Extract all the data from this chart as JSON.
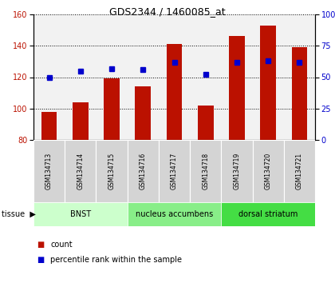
{
  "title": "GDS2344 / 1460085_at",
  "samples": [
    "GSM134713",
    "GSM134714",
    "GSM134715",
    "GSM134716",
    "GSM134717",
    "GSM134718",
    "GSM134719",
    "GSM134720",
    "GSM134721"
  ],
  "counts": [
    98,
    104,
    119,
    114,
    141,
    102,
    146,
    153,
    139
  ],
  "percentile": [
    50,
    55,
    57,
    56,
    62,
    52,
    62,
    63,
    62
  ],
  "ylim_left": [
    80,
    160
  ],
  "ylim_right": [
    0,
    100
  ],
  "yticks_left": [
    80,
    100,
    120,
    140,
    160
  ],
  "yticks_right": [
    0,
    25,
    50,
    75,
    100
  ],
  "bar_color": "#bb1100",
  "dot_color": "#0000cc",
  "bg_color": "#ffffff",
  "plot_bg": "#f2f2f2",
  "label_bg": "#d0d0d0",
  "tissue_groups": [
    {
      "label": "BNST",
      "start": 0,
      "end": 3,
      "color": "#ccffcc"
    },
    {
      "label": "nucleus accumbens",
      "start": 3,
      "end": 6,
      "color": "#88ee88"
    },
    {
      "label": "dorsal striatum",
      "start": 6,
      "end": 9,
      "color": "#44dd44"
    }
  ],
  "tissue_label": "tissue",
  "legend_count": "count",
  "legend_pct": "percentile rank within the sample"
}
